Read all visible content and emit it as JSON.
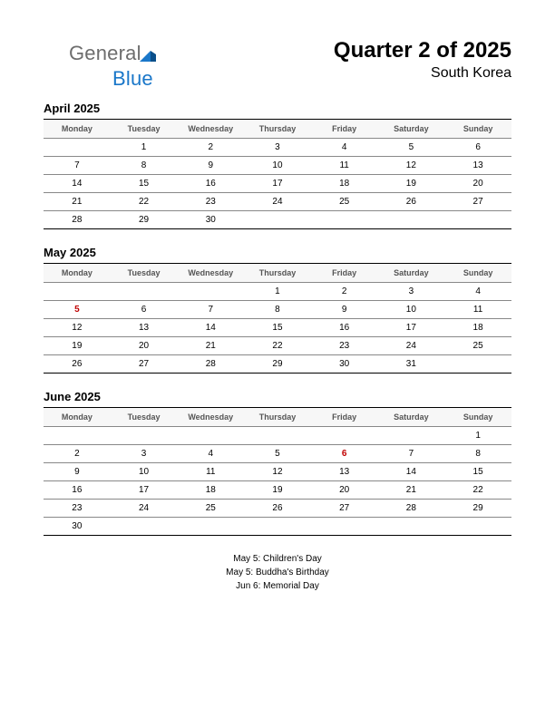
{
  "logo": {
    "part1": "General",
    "part2": "Blue",
    "tri_colors": [
      "#1a77c9",
      "#0a4f8a"
    ]
  },
  "header": {
    "title": "Quarter 2 of 2025",
    "subtitle": "South Korea"
  },
  "weekdays": [
    "Monday",
    "Tuesday",
    "Wednesday",
    "Thursday",
    "Friday",
    "Saturday",
    "Sunday"
  ],
  "holiday_color": "#c00000",
  "months": [
    {
      "title": "April 2025",
      "weeks": [
        [
          "",
          "1",
          "2",
          "3",
          "4",
          "5",
          "6"
        ],
        [
          "7",
          "8",
          "9",
          "10",
          "11",
          "12",
          "13"
        ],
        [
          "14",
          "15",
          "16",
          "17",
          "18",
          "19",
          "20"
        ],
        [
          "21",
          "22",
          "23",
          "24",
          "25",
          "26",
          "27"
        ],
        [
          "28",
          "29",
          "30",
          "",
          "",
          "",
          ""
        ]
      ],
      "holidays": []
    },
    {
      "title": "May 2025",
      "weeks": [
        [
          "",
          "",
          "",
          "1",
          "2",
          "3",
          "4"
        ],
        [
          "5",
          "6",
          "7",
          "8",
          "9",
          "10",
          "11"
        ],
        [
          "12",
          "13",
          "14",
          "15",
          "16",
          "17",
          "18"
        ],
        [
          "19",
          "20",
          "21",
          "22",
          "23",
          "24",
          "25"
        ],
        [
          "26",
          "27",
          "28",
          "29",
          "30",
          "31",
          ""
        ]
      ],
      "holidays": [
        "5"
      ]
    },
    {
      "title": "June 2025",
      "weeks": [
        [
          "",
          "",
          "",
          "",
          "",
          "",
          "1"
        ],
        [
          "2",
          "3",
          "4",
          "5",
          "6",
          "7",
          "8"
        ],
        [
          "9",
          "10",
          "11",
          "12",
          "13",
          "14",
          "15"
        ],
        [
          "16",
          "17",
          "18",
          "19",
          "20",
          "21",
          "22"
        ],
        [
          "23",
          "24",
          "25",
          "26",
          "27",
          "28",
          "29"
        ],
        [
          "30",
          "",
          "",
          "",
          "",
          "",
          ""
        ]
      ],
      "holidays": [
        "6"
      ]
    }
  ],
  "holiday_list": [
    "May 5: Children's Day",
    "May 5: Buddha's Birthday",
    "Jun 6: Memorial Day"
  ]
}
